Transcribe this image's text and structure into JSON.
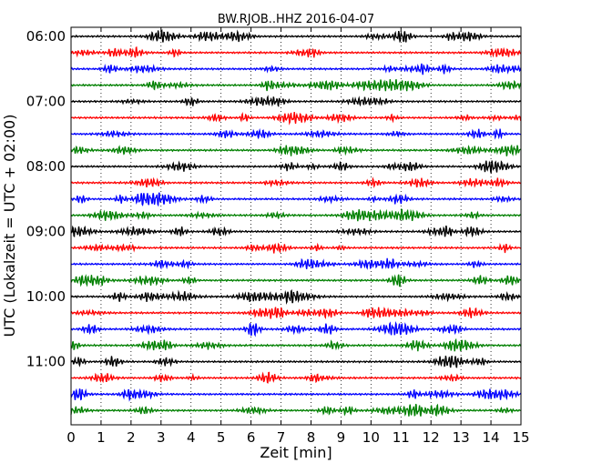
{
  "chart_data": {
    "type": "line",
    "title": "BW.RJOB..HHZ 2016-04-07",
    "xlabel": "Zeit  [min]",
    "ylabel": "UTC (Lokalzeit = UTC + 02:00)",
    "xlim": [
      0,
      15
    ],
    "x_ticks": [
      "0",
      "1",
      "2",
      "3",
      "4",
      "5",
      "6",
      "7",
      "8",
      "9",
      "10",
      "11",
      "12",
      "13",
      "14",
      "15"
    ],
    "y_ticks": [
      "06:00",
      "07:00",
      "08:00",
      "09:00",
      "10:00",
      "11:00"
    ],
    "trace_interval_minutes": 15,
    "trace_count": 24,
    "first_trace_start": "06:00",
    "trace_colors": [
      "#000000",
      "#ff0000",
      "#0000ff",
      "#008000"
    ],
    "grid": "vertical dotted lines at each minute"
  }
}
